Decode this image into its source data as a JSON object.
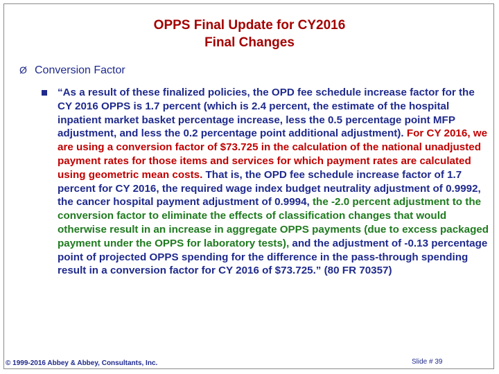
{
  "slide": {
    "title_line1": "OPPS Final Update for CY2016",
    "title_line2": "Final Changes",
    "bullet_marker": "Ø",
    "bullet_label": "Conversion Factor",
    "quote_blue_1": "“As a result of these finalized policies, the OPD fee schedule increase factor for the CY 2016 OPPS is 1.7 percent (which is 2.4 percent, the estimate of the hospital inpatient market basket percentage increase, less the 0.5 percentage point MFP adjustment, and less the 0.2 percentage point additional adjustment). ",
    "quote_red": "For CY 2016, we are using a conversion factor of $73.725 in the calculation of the national unadjusted payment rates for those items and services for which payment rates are calculated using geometric mean costs.",
    "quote_blue_2": " That is, the OPD fee schedule increase factor of 1.7 percent for CY 2016, the required wage index budget neutrality adjustment of 0.9992, the cancer hospital payment adjustment of 0.9994, ",
    "quote_green": "the -2.0 percent adjustment to the conversion factor to eliminate the effects of classification changes that would otherwise result in an increase in aggregate OPPS payments (due to excess packaged payment under the OPPS for laboratory tests),",
    "quote_blue_3": " and the adjustment of -0.13 percentage point of projected OPPS spending for the difference in the pass-through spending result in a conversion factor for CY 2016 of $73.725.”  (80 FR 70357)",
    "footer_copyright": "© 1999-2016 Abbey & Abbey, Consultants, Inc.",
    "footer_slide": "Slide # 39"
  },
  "colors": {
    "title": "#a30000",
    "text_blue": "#1f2a8c",
    "text_red": "#c00000",
    "text_green": "#1f7a1f"
  }
}
